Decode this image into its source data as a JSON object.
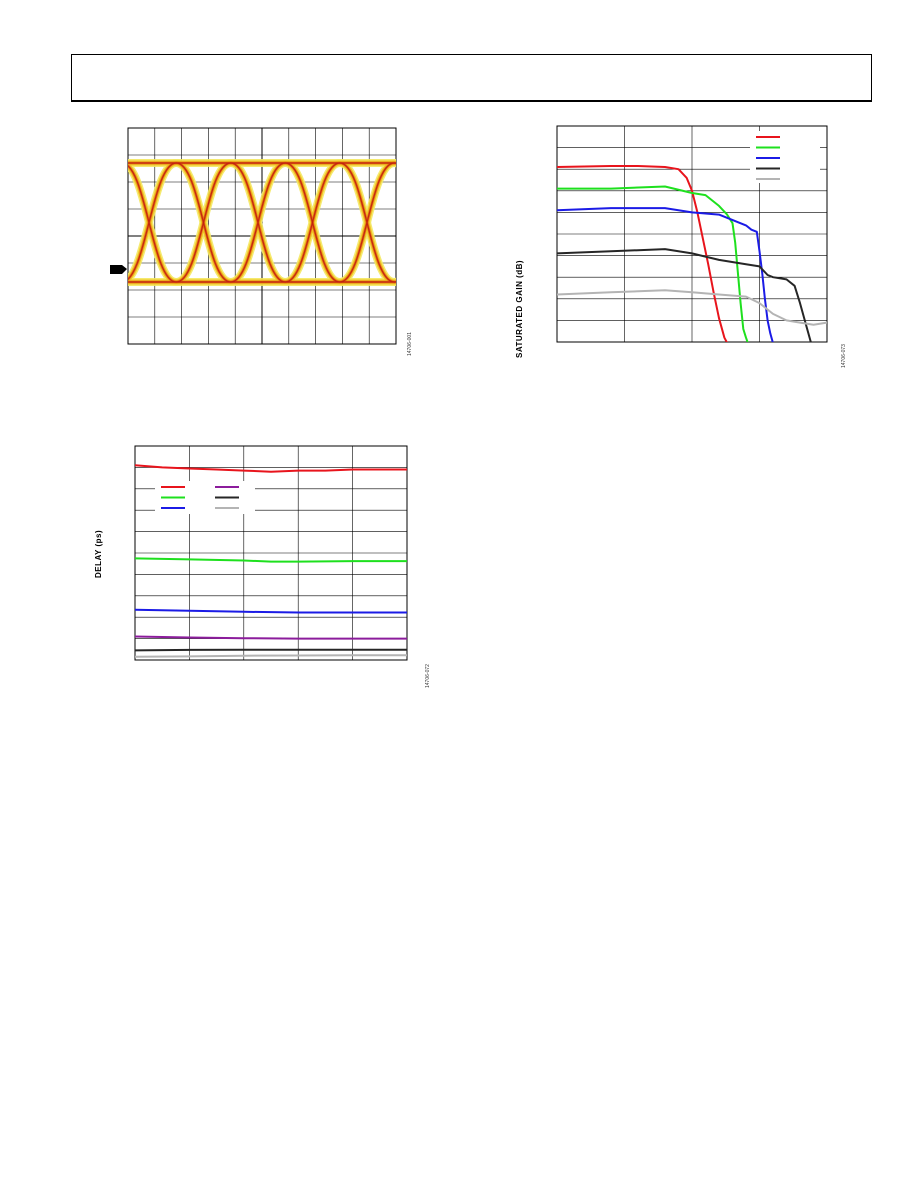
{
  "page": {
    "header_title": ""
  },
  "eye_diagram": {
    "figure_id": "14706-001",
    "colors": {
      "hot": "#c02010",
      "mid": "#e06010",
      "warm": "#f0c020",
      "cool": "#f4e860"
    }
  },
  "chart_data": [
    {
      "type": "line",
      "title": "",
      "xlabel": "",
      "ylabel": "SATURATED GAIN (dB)",
      "figure_id": "14706-073",
      "grid": true,
      "legend_placement": "top-right",
      "xlim": [
        0,
        1
      ],
      "ylim": [
        0,
        10
      ],
      "series": [
        {
          "color": "#e8141c",
          "x": [
            0,
            0.2,
            0.3,
            0.4,
            0.45,
            0.48,
            0.5,
            0.52,
            0.54,
            0.56,
            0.58,
            0.6,
            0.62,
            0.65
          ],
          "y": [
            8.1,
            8.15,
            8.15,
            8.1,
            8.0,
            7.6,
            7.0,
            6.0,
            4.8,
            3.6,
            2.3,
            1.1,
            0.2,
            -0.5
          ]
        },
        {
          "color": "#1ee01e",
          "x": [
            0,
            0.2,
            0.4,
            0.5,
            0.55,
            0.6,
            0.63,
            0.65,
            0.66,
            0.67,
            0.68,
            0.69,
            0.7,
            0.72
          ],
          "y": [
            7.1,
            7.1,
            7.2,
            6.9,
            6.8,
            6.3,
            5.9,
            5.5,
            4.6,
            3.2,
            1.8,
            0.6,
            0.2,
            -0.5
          ]
        },
        {
          "color": "#1b1be6",
          "x": [
            0,
            0.2,
            0.4,
            0.5,
            0.6,
            0.7,
            0.72,
            0.74,
            0.75,
            0.76,
            0.77,
            0.78,
            0.79,
            0.81
          ],
          "y": [
            6.1,
            6.2,
            6.2,
            6.0,
            5.9,
            5.4,
            5.2,
            5.1,
            4.2,
            3.2,
            2.0,
            1.0,
            0.4,
            -0.5
          ]
        },
        {
          "color": "#262626",
          "x": [
            0,
            0.2,
            0.4,
            0.5,
            0.6,
            0.7,
            0.75,
            0.78,
            0.8,
            0.85,
            0.88,
            0.9,
            0.92,
            0.94
          ],
          "y": [
            4.1,
            4.2,
            4.3,
            4.1,
            3.8,
            3.6,
            3.5,
            3.1,
            3.0,
            2.9,
            2.6,
            1.8,
            0.9,
            0.0
          ]
        },
        {
          "color": "#b4b4b4",
          "x": [
            0,
            0.2,
            0.4,
            0.5,
            0.6,
            0.7,
            0.75,
            0.8,
            0.85,
            0.9,
            0.95,
            1.0
          ],
          "y": [
            2.2,
            2.3,
            2.4,
            2.3,
            2.2,
            2.1,
            1.8,
            1.3,
            1.0,
            0.9,
            0.8,
            0.9
          ]
        }
      ]
    },
    {
      "type": "line",
      "title": "",
      "xlabel": "",
      "ylabel": "DELAY (ps)",
      "figure_id": "14706-072",
      "grid": true,
      "legend_placement": "top-left",
      "xlim": [
        0,
        1
      ],
      "ylim": [
        0,
        10
      ],
      "series": [
        {
          "color": "#e8141c",
          "x": [
            0,
            0.1,
            0.2,
            0.3,
            0.4,
            0.5,
            0.6,
            0.7,
            0.8,
            0.9,
            1.0
          ],
          "y": [
            9.1,
            9.0,
            8.95,
            8.9,
            8.85,
            8.8,
            8.85,
            8.85,
            8.9,
            8.9,
            8.9
          ]
        },
        {
          "color": "#1ee01e",
          "x": [
            0,
            0.2,
            0.4,
            0.5,
            0.6,
            0.8,
            1.0
          ],
          "y": [
            4.75,
            4.7,
            4.65,
            4.6,
            4.6,
            4.62,
            4.62
          ]
        },
        {
          "color": "#1b1be6",
          "x": [
            0,
            0.2,
            0.4,
            0.6,
            0.8,
            1.0
          ],
          "y": [
            2.35,
            2.3,
            2.25,
            2.22,
            2.22,
            2.22
          ]
        },
        {
          "color": "#8c1c9c",
          "x": [
            0,
            0.2,
            0.4,
            0.6,
            0.8,
            1.0
          ],
          "y": [
            1.1,
            1.05,
            1.02,
            1.0,
            1.0,
            1.0
          ]
        },
        {
          "color": "#262626",
          "x": [
            0,
            0.2,
            0.4,
            0.6,
            0.8,
            1.0
          ],
          "y": [
            0.45,
            0.47,
            0.48,
            0.48,
            0.48,
            0.48
          ]
        },
        {
          "color": "#b4b4b4",
          "x": [
            0,
            0.2,
            0.4,
            0.6,
            0.8,
            1.0
          ],
          "y": [
            0.15,
            0.17,
            0.2,
            0.21,
            0.22,
            0.22
          ]
        }
      ]
    }
  ]
}
